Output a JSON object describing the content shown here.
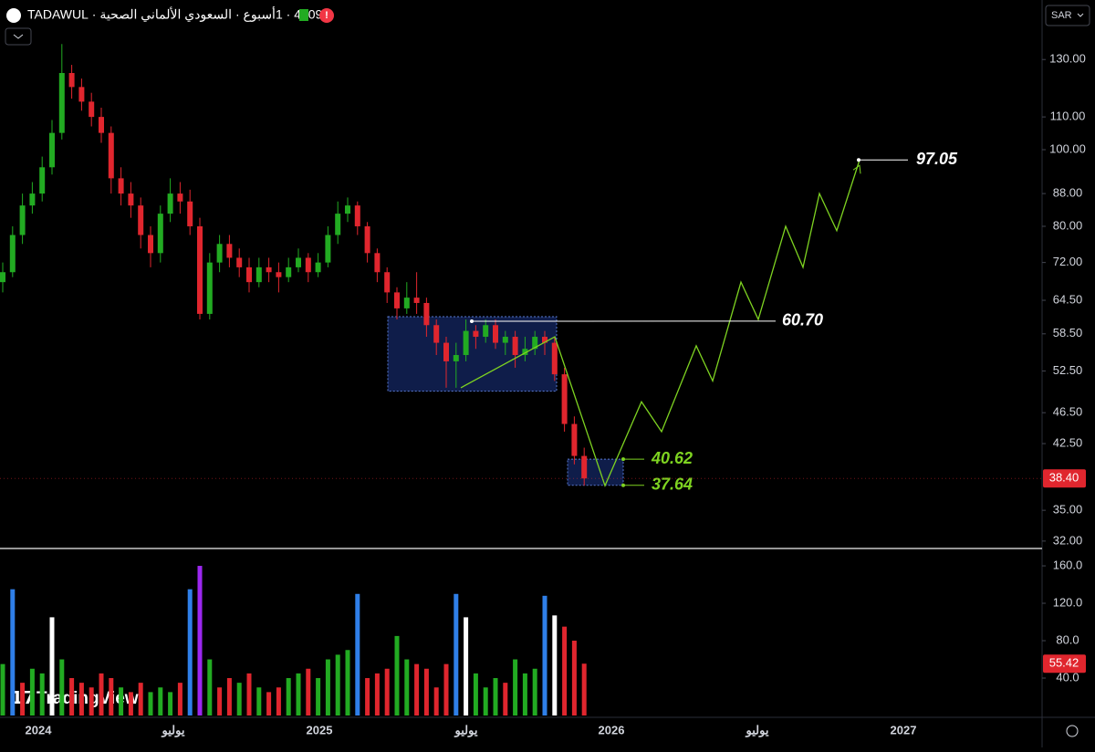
{
  "chart_data": {
    "type": "candlestick",
    "title": "4009 · 1أسبوع · السعودي الألماني الصحية · TADAWUL",
    "currency": "SAR",
    "watermark": "TradingView",
    "log_scale": true,
    "grid": false,
    "up_color": "#22ab22",
    "down_color": "#e0262e",
    "ylim": [
      31.4,
      154.6
    ],
    "yticks": [
      {
        "value": 130,
        "label": "130.00"
      },
      {
        "value": 110,
        "label": "110.00"
      },
      {
        "value": 100,
        "label": "100.00"
      },
      {
        "value": 88,
        "label": "88.00"
      },
      {
        "value": 80,
        "label": "80.00"
      },
      {
        "value": 72,
        "label": "72.00"
      },
      {
        "value": 64.5,
        "label": "64.50"
      },
      {
        "value": 58.5,
        "label": "58.50"
      },
      {
        "value": 52.5,
        "label": "52.50"
      },
      {
        "value": 46.5,
        "label": "46.50"
      },
      {
        "value": 42.5,
        "label": "42.50"
      },
      {
        "value": 35,
        "label": "35.00"
      },
      {
        "value": 32,
        "label": "32.00"
      }
    ],
    "time_labels": [
      "2024",
      "يوليو",
      "2025",
      "يوليو",
      "2026",
      "يوليو",
      "2027"
    ],
    "candles": [
      [
        68,
        72,
        66,
        70
      ],
      [
        70,
        80,
        69,
        78
      ],
      [
        78,
        88,
        76,
        85
      ],
      [
        85,
        91,
        83,
        88
      ],
      [
        88,
        98,
        86,
        95
      ],
      [
        95,
        109,
        93,
        105
      ],
      [
        105,
        136,
        103,
        125
      ],
      [
        125,
        128,
        116,
        120
      ],
      [
        120,
        123,
        112,
        115
      ],
      [
        115,
        118,
        107,
        110
      ],
      [
        110,
        113,
        102,
        105
      ],
      [
        105,
        107,
        88,
        92
      ],
      [
        92,
        95,
        85,
        88
      ],
      [
        88,
        91,
        82,
        85
      ],
      [
        85,
        87,
        75,
        78
      ],
      [
        78,
        80,
        71,
        74
      ],
      [
        74,
        85,
        72,
        83
      ],
      [
        83,
        92,
        81,
        88
      ],
      [
        88,
        91,
        83,
        86
      ],
      [
        86,
        89,
        78,
        80
      ],
      [
        80,
        82,
        61,
        62
      ],
      [
        62,
        74,
        61,
        72
      ],
      [
        72,
        78,
        70,
        76
      ],
      [
        76,
        78,
        71,
        73
      ],
      [
        73,
        75,
        69,
        71
      ],
      [
        71,
        73,
        66,
        68
      ],
      [
        68,
        73,
        67,
        71
      ],
      [
        71,
        73,
        68,
        70
      ],
      [
        70,
        72,
        66,
        69
      ],
      [
        69,
        73,
        68,
        71
      ],
      [
        71,
        75,
        70,
        73
      ],
      [
        73,
        74,
        68,
        70
      ],
      [
        70,
        74,
        69,
        72
      ],
      [
        72,
        80,
        71,
        78
      ],
      [
        78,
        86,
        76,
        83
      ],
      [
        83,
        87,
        81,
        85
      ],
      [
        85,
        86,
        78,
        80
      ],
      [
        80,
        81,
        72,
        74
      ],
      [
        74,
        75,
        68,
        70
      ],
      [
        70,
        71,
        64,
        66
      ],
      [
        66,
        67,
        61,
        63
      ],
      [
        63,
        68,
        62,
        65
      ],
      [
        65,
        70,
        62,
        64
      ],
      [
        64,
        65,
        58,
        60
      ],
      [
        60,
        61,
        55,
        57
      ],
      [
        57,
        58,
        50,
        54
      ],
      [
        54,
        57,
        50,
        55
      ],
      [
        55,
        61,
        54,
        59
      ],
      [
        59,
        60,
        56,
        58
      ],
      [
        58,
        61,
        57,
        60
      ],
      [
        60,
        61,
        56,
        57
      ],
      [
        57,
        59,
        55,
        58
      ],
      [
        58,
        59,
        53,
        55
      ],
      [
        55,
        58,
        54,
        56
      ],
      [
        56,
        59,
        55,
        58
      ],
      [
        58,
        59,
        55,
        57
      ],
      [
        57,
        58,
        51,
        52
      ],
      [
        52,
        53,
        44,
        45
      ],
      [
        45,
        46,
        40,
        41
      ],
      [
        41,
        42,
        37.6,
        38.4
      ]
    ],
    "price_label": "38.40",
    "levels": [
      97.05,
      {
        "value": 60.7,
        "label": "60.70"
      },
      40.62,
      37.64
    ],
    "zone": [
      61.5,
      49.5
    ],
    "projection": [
      50,
      58,
      37.6,
      48,
      44,
      56.5,
      51,
      68,
      61,
      80,
      71,
      88,
      79,
      97.05
    ],
    "volume": {
      "ylim": [
        0,
        177.6
      ],
      "yticks": [
        {
          "value": 160,
          "label": "160.0"
        },
        {
          "value": 120,
          "label": "120.0"
        },
        {
          "value": 80,
          "label": "80.0"
        },
        {
          "value": 40,
          "label": "40.0"
        }
      ],
      "values": [
        55,
        135,
        35,
        50,
        45,
        105,
        60,
        40,
        35,
        30,
        45,
        40,
        30,
        25,
        35,
        25,
        30,
        25,
        35,
        135,
        160,
        60,
        30,
        40,
        35,
        45,
        30,
        25,
        30,
        40,
        45,
        50,
        40,
        60,
        65,
        70,
        130,
        40,
        45,
        50,
        85,
        60,
        55,
        50,
        30,
        55,
        130,
        105,
        45,
        30,
        40,
        35,
        60,
        45,
        50,
        128,
        107,
        95,
        80,
        55.42
      ],
      "colors": [
        "#22ab22",
        "#2f7fe8",
        "#e0262e",
        "#22ab22",
        "#22ab22",
        "#ffffff",
        "#22ab22",
        "#e0262e",
        "#e0262e",
        "#e0262e",
        "#e0262e",
        "#e0262e",
        "#22ab22",
        "#e0262e",
        "#e0262e",
        "#22ab22",
        "#22ab22",
        "#22ab22",
        "#e0262e",
        "#2f7fe8",
        "#9c27f0",
        "#22ab22",
        "#e0262e",
        "#e0262e",
        "#22ab22",
        "#e0262e",
        "#22ab22",
        "#e0262e",
        "#e0262e",
        "#22ab22",
        "#22ab22",
        "#e0262e",
        "#22ab22",
        "#22ab22",
        "#22ab22",
        "#22ab22",
        "#2f7fe8",
        "#e0262e",
        "#e0262e",
        "#e0262e",
        "#22ab22",
        "#22ab22",
        "#e0262e",
        "#e0262e",
        "#e0262e",
        "#e0262e",
        "#2f7fe8",
        "#ffffff",
        "#22ab22",
        "#22ab22",
        "#22ab22",
        "#e0262e",
        "#22ab22",
        "#22ab22",
        "#22ab22",
        "#2f7fe8",
        "#ffffff",
        "#e0262e",
        "#e0262e",
        "#e0262e"
      ]
    }
  }
}
